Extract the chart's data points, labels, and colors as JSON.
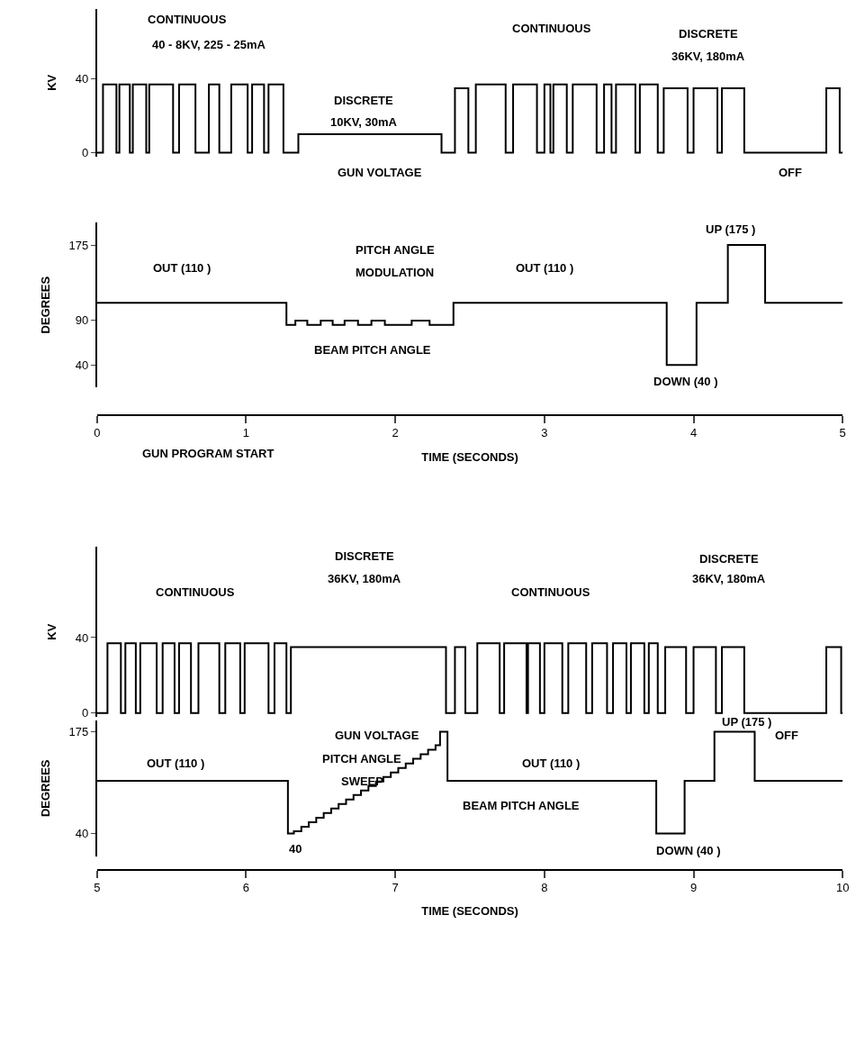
{
  "chart_data": [
    {
      "type": "step",
      "ylabel": "KV",
      "xlim": [
        0,
        5
      ],
      "ylim": [
        -2,
        78
      ],
      "yticks": [
        0,
        40
      ],
      "tick_labels": "y",
      "marker": "none",
      "line_style": "solid",
      "x": [
        0,
        0.04,
        0.13,
        0.15,
        0.22,
        0.24,
        0.33,
        0.35,
        0.51,
        0.55,
        0.66,
        0.75,
        0.82,
        0.9,
        1.01,
        1.04,
        1.12,
        1.15,
        1.25,
        1.35,
        2.31,
        2.4,
        2.49,
        2.54,
        2.74,
        2.79,
        2.95,
        3.0,
        3.04,
        3.06,
        3.15,
        3.19,
        3.35,
        3.4,
        3.45,
        3.48,
        3.61,
        3.64,
        3.76,
        3.8,
        3.96,
        4.0,
        4.16,
        4.19,
        4.34,
        4.89,
        4.98,
        5.0
      ],
      "series": [
        {
          "color": "#000000",
          "values": [
            0,
            37,
            0,
            37,
            0,
            37,
            0,
            37,
            0,
            37,
            0,
            37,
            0,
            37,
            0,
            37,
            0,
            37,
            0,
            10,
            0,
            35,
            0,
            37,
            0,
            37,
            0,
            37,
            0,
            37,
            0,
            37,
            0,
            37,
            0,
            37,
            0,
            37,
            0,
            35,
            0,
            35,
            0,
            35,
            0,
            35,
            0,
            0
          ]
        }
      ],
      "annotations": [
        "CONTINUOUS",
        "40 - 8KV, 225 - 25mA",
        "DISCRETE",
        "10KV, 30mA",
        "CONTINUOUS",
        "DISCRETE",
        "36KV, 180mA",
        "GUN VOLTAGE",
        "OFF"
      ]
    },
    {
      "type": "step",
      "ylabel": "DEGREES",
      "xlabel": "TIME (SECONDS)",
      "xlim": [
        0,
        5
      ],
      "xticks": [
        0,
        1,
        2,
        3,
        4,
        5
      ],
      "ylim": [
        15,
        200
      ],
      "yticks": [
        40,
        90,
        175
      ],
      "marker": "none",
      "line_style": "solid",
      "x": [
        0,
        1.27,
        1.33,
        1.41,
        1.5,
        1.58,
        1.66,
        1.75,
        1.84,
        1.93,
        2.11,
        2.23,
        2.39,
        3.82,
        4.02,
        4.23,
        4.48,
        5.0
      ],
      "series": [
        {
          "color": "#000000",
          "values": [
            110,
            85,
            90,
            85,
            90,
            85,
            90,
            85,
            90,
            85,
            90,
            85,
            110,
            40,
            110,
            175,
            110,
            110
          ]
        }
      ],
      "annotations": [
        "OUT (110 )",
        "PITCH ANGLE",
        "MODULATION",
        "OUT (110 )",
        "UP (175 )",
        "BEAM PITCH ANGLE",
        "DOWN (40 )",
        "GUN PROGRAM START"
      ]
    },
    {
      "type": "step",
      "ylabel": "KV",
      "xlim": [
        5,
        10
      ],
      "ylim": [
        -2,
        88
      ],
      "yticks": [
        0,
        40
      ],
      "tick_labels": "y",
      "marker": "none",
      "line_style": "solid",
      "x": [
        5,
        5.07,
        5.16,
        5.19,
        5.26,
        5.29,
        5.4,
        5.44,
        5.52,
        5.55,
        5.63,
        5.68,
        5.82,
        5.86,
        5.96,
        5.99,
        6.15,
        6.19,
        6.27,
        6.3,
        7.34,
        7.4,
        7.47,
        7.55,
        7.7,
        7.73,
        7.88,
        7.89,
        7.97,
        8.0,
        8.12,
        8.16,
        8.28,
        8.32,
        8.42,
        8.46,
        8.55,
        8.58,
        8.67,
        8.7,
        8.76,
        8.81,
        8.95,
        9.0,
        9.15,
        9.19,
        9.34,
        9.89,
        9.99,
        10
      ],
      "series": [
        {
          "color": "#000000",
          "values": [
            0,
            37,
            0,
            37,
            0,
            37,
            0,
            37,
            0,
            37,
            0,
            37,
            0,
            37,
            0,
            37,
            0,
            37,
            0,
            35,
            0,
            35,
            0,
            37,
            0,
            37,
            0,
            37,
            0,
            37,
            0,
            37,
            0,
            37,
            0,
            37,
            0,
            37,
            0,
            37,
            0,
            35,
            0,
            35,
            0,
            35,
            0,
            35,
            0,
            0
          ]
        }
      ],
      "annotations": [
        "CONTINUOUS",
        "DISCRETE",
        "36KV, 180mA",
        "CONTINUOUS",
        "DISCRETE",
        "36KV, 180mA",
        "GUN VOLTAGE",
        "OFF"
      ]
    },
    {
      "type": "step",
      "ylabel": "DEGREES",
      "xlabel": "TIME (SECONDS)",
      "xlim": [
        5,
        10
      ],
      "xticks": [
        5,
        6,
        7,
        8,
        9,
        10
      ],
      "ylim": [
        10,
        190
      ],
      "yticks": [
        40,
        175
      ],
      "marker": "none",
      "line_style": "solid",
      "x": [
        5,
        6.28,
        6.32,
        6.37,
        6.42,
        6.47,
        6.52,
        6.57,
        6.62,
        6.67,
        6.72,
        6.77,
        6.82,
        6.87,
        6.92,
        6.97,
        7.02,
        7.07,
        7.12,
        7.17,
        7.22,
        7.27,
        7.3,
        7.35,
        8.75,
        8.94,
        9.14,
        9.41,
        10
      ],
      "series": [
        {
          "color": "#000000",
          "values": [
            110,
            40,
            43,
            49,
            55,
            61,
            67,
            73,
            79,
            85,
            91,
            97,
            103,
            109,
            115,
            121,
            127,
            133,
            139,
            145,
            151,
            157,
            175,
            110,
            40,
            110,
            175,
            110,
            110
          ]
        }
      ],
      "annotations": [
        "OUT (110 )",
        "PITCH ANGLE",
        "SWEEP",
        "40",
        "OUT (110 )",
        "UP (175 )",
        "BEAM PITCH ANGLE",
        "DOWN (40 )"
      ]
    }
  ]
}
